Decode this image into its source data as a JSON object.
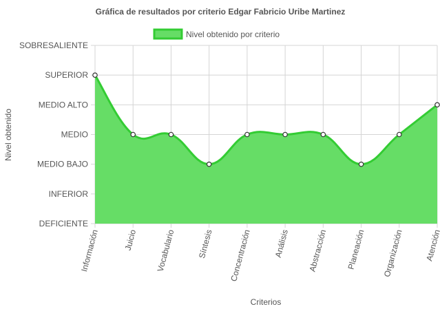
{
  "chart_data": {
    "type": "area",
    "title": "Gráfica de resultados por criterio Edgar Fabricio Uribe Martinez",
    "xlabel": "Criterios",
    "ylabel": "Nivel obtenido",
    "categories": [
      "Información",
      "Juicio",
      "Vocabulario",
      "Síntesis",
      "Concentración",
      "Análisis",
      "Abstracción",
      "Planeación",
      "Organización",
      "Atención"
    ],
    "y_levels": [
      "DEFICIENTE",
      "INFERIOR",
      "MEDIO BAJO",
      "MEDIO",
      "MEDIO ALTO",
      "SUPERIOR",
      "SOBRESALIENTE"
    ],
    "ylim": [
      0,
      6
    ],
    "series": [
      {
        "name": "Nivel obtenido por criterio",
        "values": [
          5,
          3,
          3,
          2,
          3,
          3,
          3,
          2,
          3,
          4
        ]
      }
    ],
    "colors": {
      "fill": "#66dd66",
      "line": "#33cc33",
      "point_fill": "#ffffff",
      "point_stroke": "#333333",
      "grid": "#d4d4d4",
      "text": "#555555"
    },
    "legend_position": "top",
    "grid": true
  }
}
